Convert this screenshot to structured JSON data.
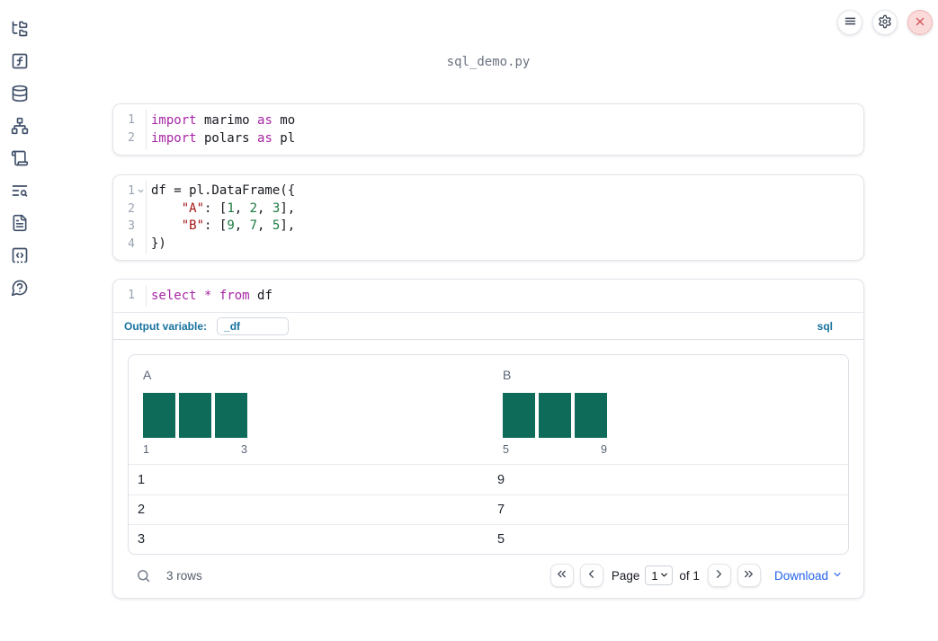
{
  "app": {
    "title": "sql_demo.py"
  },
  "topbar": {
    "buttons": [
      {
        "name": "notebook-menu",
        "icon": "hamburger-icon"
      },
      {
        "name": "settings",
        "icon": "gear-icon"
      },
      {
        "name": "shutdown",
        "icon": "close-x-icon"
      }
    ]
  },
  "sidebar": {
    "items": [
      {
        "name": "file-explorer",
        "icon": "folder-tree-icon"
      },
      {
        "name": "variables",
        "icon": "function-square-icon"
      },
      {
        "name": "datasources",
        "icon": "database-icon"
      },
      {
        "name": "dependency-graph",
        "icon": "network-icon"
      },
      {
        "name": "logs",
        "icon": "scroll-icon"
      },
      {
        "name": "documentation",
        "icon": "text-search-icon"
      },
      {
        "name": "snippets",
        "icon": "file-document-icon"
      },
      {
        "name": "scratchpad",
        "icon": "code-square-dashed-icon"
      },
      {
        "name": "help",
        "icon": "help-bubble-icon"
      }
    ]
  },
  "cells": [
    {
      "name": "imports-cell",
      "lines": [
        {
          "num": "1",
          "tokens": [
            [
              "kw",
              "import"
            ],
            [
              "pl",
              " marimo "
            ],
            [
              "kw",
              "as"
            ],
            [
              "pl",
              " mo"
            ]
          ]
        },
        {
          "num": "2",
          "tokens": [
            [
              "kw",
              "import"
            ],
            [
              "pl",
              " polars "
            ],
            [
              "kw",
              "as"
            ],
            [
              "pl",
              " pl"
            ]
          ]
        }
      ]
    },
    {
      "name": "dataframe-cell",
      "lines": [
        {
          "num": "1",
          "fold": true,
          "tokens": [
            [
              "pl",
              "df = pl.DataFrame({"
            ]
          ]
        },
        {
          "num": "2",
          "tokens": [
            [
              "pl",
              "    "
            ],
            [
              "str",
              "\"A\""
            ],
            [
              "pl",
              ": ["
            ],
            [
              "num",
              "1"
            ],
            [
              "pl",
              ", "
            ],
            [
              "num",
              "2"
            ],
            [
              "pl",
              ", "
            ],
            [
              "num",
              "3"
            ],
            [
              "pl",
              "],"
            ]
          ]
        },
        {
          "num": "3",
          "tokens": [
            [
              "pl",
              "    "
            ],
            [
              "str",
              "\"B\""
            ],
            [
              "pl",
              ": ["
            ],
            [
              "num",
              "9"
            ],
            [
              "pl",
              ", "
            ],
            [
              "num",
              "7"
            ],
            [
              "pl",
              ", "
            ],
            [
              "num",
              "5"
            ],
            [
              "pl",
              "],"
            ]
          ]
        },
        {
          "num": "4",
          "tokens": [
            [
              "pl",
              "})"
            ]
          ]
        }
      ]
    },
    {
      "name": "sql-cell",
      "lines": [
        {
          "num": "1",
          "tokens": [
            [
              "kw",
              "select"
            ],
            [
              "pl",
              " "
            ],
            [
              "kw",
              "*"
            ],
            [
              "pl",
              " "
            ],
            [
              "kw",
              "from"
            ],
            [
              "pl",
              " df"
            ]
          ]
        }
      ]
    }
  ],
  "sql_cell": {
    "output_variable_label": "Output variable:",
    "output_variable_value": "_df",
    "language_badge": "sql"
  },
  "table": {
    "columns": [
      {
        "header": "A",
        "hist": {
          "type": "bar",
          "bars": [
            1,
            1,
            1
          ],
          "min_label": "1",
          "max_label": "3"
        }
      },
      {
        "header": "B",
        "hist": {
          "type": "bar",
          "bars": [
            1,
            1,
            1
          ],
          "min_label": "5",
          "max_label": "9"
        }
      }
    ],
    "rows": [
      [
        "1",
        "9"
      ],
      [
        "2",
        "7"
      ],
      [
        "3",
        "5"
      ]
    ],
    "footer": {
      "row_count": "3 rows",
      "page_label": "Page",
      "page_value": "1",
      "of_label": "of 1",
      "download_label": "Download"
    }
  },
  "colors": {
    "histogram_bar": "#0e6b5a",
    "accent_blue": "#17719e",
    "link_blue": "#2563eb",
    "keyword_purple": "#a626a4",
    "string_red": "#a31515",
    "number_green": "#1b7a43",
    "close_red": "#d15454"
  }
}
